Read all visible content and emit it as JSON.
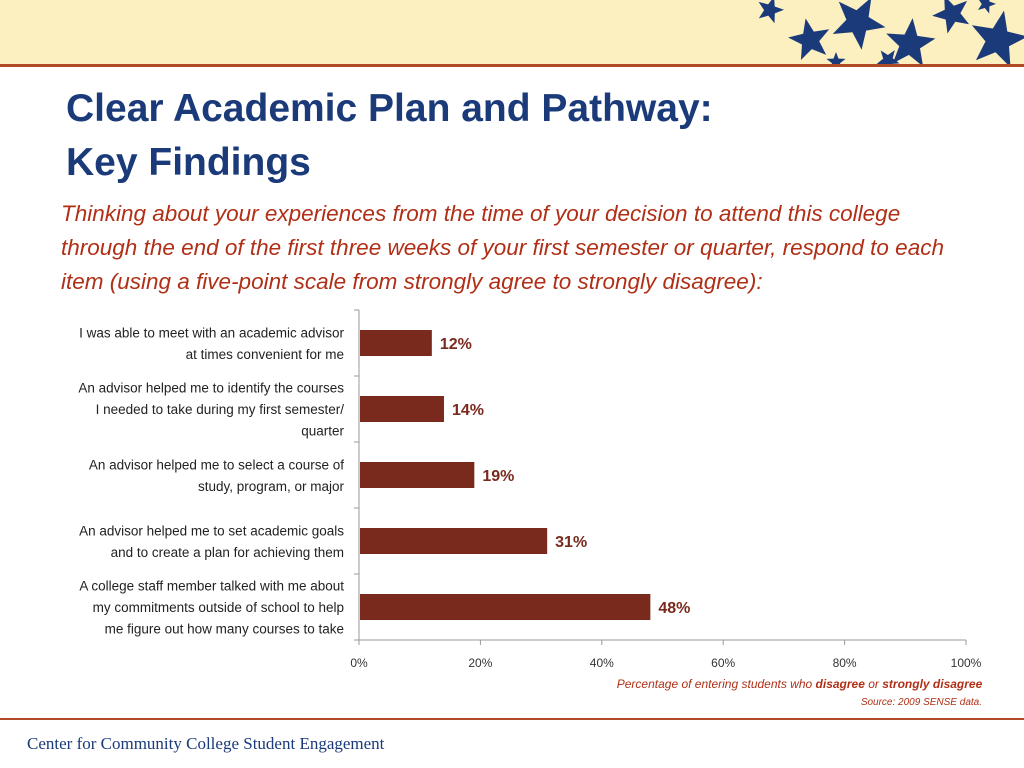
{
  "slide": {
    "title_lines": [
      "Clear Academic Plan and Pathway:",
      "Key Findings"
    ],
    "question": "Thinking about your experiences from the time of your decision to attend this college through the end of the first three weeks of your first semester or quarter, respond to each item (using a five-point scale from strongly agree to strongly disagree):",
    "source": "Source: 2009 SENSE data.",
    "footer": "Center for Community College Student Engagement"
  },
  "colors": {
    "bar": "#7a2a1d",
    "title": "#1a3a7a",
    "accent_text": "#b02f16",
    "band": "#fcefc0",
    "stars": "#1a3a7a"
  },
  "chart_data": {
    "type": "bar",
    "orientation": "horizontal",
    "categories": [
      [
        "I was able to meet with an academic advisor",
        "at times convenient for me"
      ],
      [
        "An advisor helped me to identify the courses",
        "I needed to take during my first semester/",
        "quarter"
      ],
      [
        "An advisor helped me to select a course of",
        "study, program, or major"
      ],
      [
        "An advisor helped me to set academic goals",
        "and to create a plan for achieving them"
      ],
      [
        "A college staff member talked with me about",
        "my commitments outside of school to help",
        "me figure out how many courses to take"
      ]
    ],
    "values": [
      12,
      14,
      19,
      31,
      48
    ],
    "data_labels": [
      "12%",
      "14%",
      "19%",
      "31%",
      "48%"
    ],
    "xlim": [
      0,
      100
    ],
    "xticks": [
      0,
      20,
      40,
      60,
      80,
      100
    ],
    "xtick_labels": [
      "0%",
      "20%",
      "40%",
      "60%",
      "80%",
      "100%"
    ],
    "xlabel_parts": [
      {
        "text": "Percentage of entering students who ",
        "bold": false
      },
      {
        "text": "disagree",
        "bold": true
      },
      {
        "text": " or ",
        "bold": false
      },
      {
        "text": "strongly disagree",
        "bold": true
      }
    ],
    "grid": false,
    "legend": "none"
  }
}
